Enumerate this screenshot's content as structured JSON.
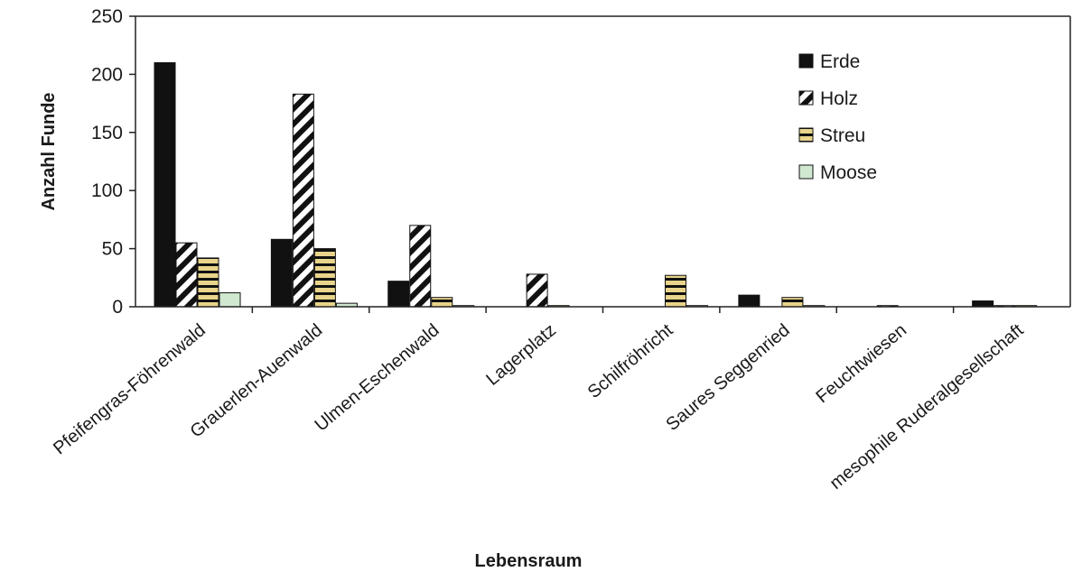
{
  "chart_data": {
    "type": "bar",
    "title": "",
    "xlabel": "Lebensraum",
    "ylabel": "Anzahl Funde",
    "ylim": [
      0,
      250
    ],
    "yticks": [
      0,
      50,
      100,
      150,
      200,
      250
    ],
    "grid": false,
    "legend_position": "top-right",
    "categories": [
      "Pfeifengras-Föhrenwald",
      "Grauerlen-Auenwald",
      "Ulmen-Eschenwald",
      "Lagerplatz",
      "Schilfröhricht",
      "Saures Seggenried",
      "Feuchtwiesen",
      "mesophile Ruderalgesellschaft"
    ],
    "series": [
      {
        "name": "Erde",
        "pattern": "solid",
        "color": "#111111",
        "values": [
          210,
          58,
          22,
          0,
          0,
          10,
          0,
          5
        ]
      },
      {
        "name": "Holz",
        "pattern": "diagonal",
        "color": "#111111",
        "values": [
          55,
          183,
          70,
          28,
          0,
          0,
          1,
          1
        ]
      },
      {
        "name": "Streu",
        "pattern": "horizontal",
        "color": "#e8d48a",
        "values": [
          42,
          50,
          8,
          1,
          27,
          8,
          0,
          1
        ]
      },
      {
        "name": "Moose",
        "pattern": "solid",
        "color": "#cfe8cf",
        "values": [
          12,
          3,
          1,
          0,
          1,
          1,
          0,
          0
        ]
      }
    ]
  }
}
